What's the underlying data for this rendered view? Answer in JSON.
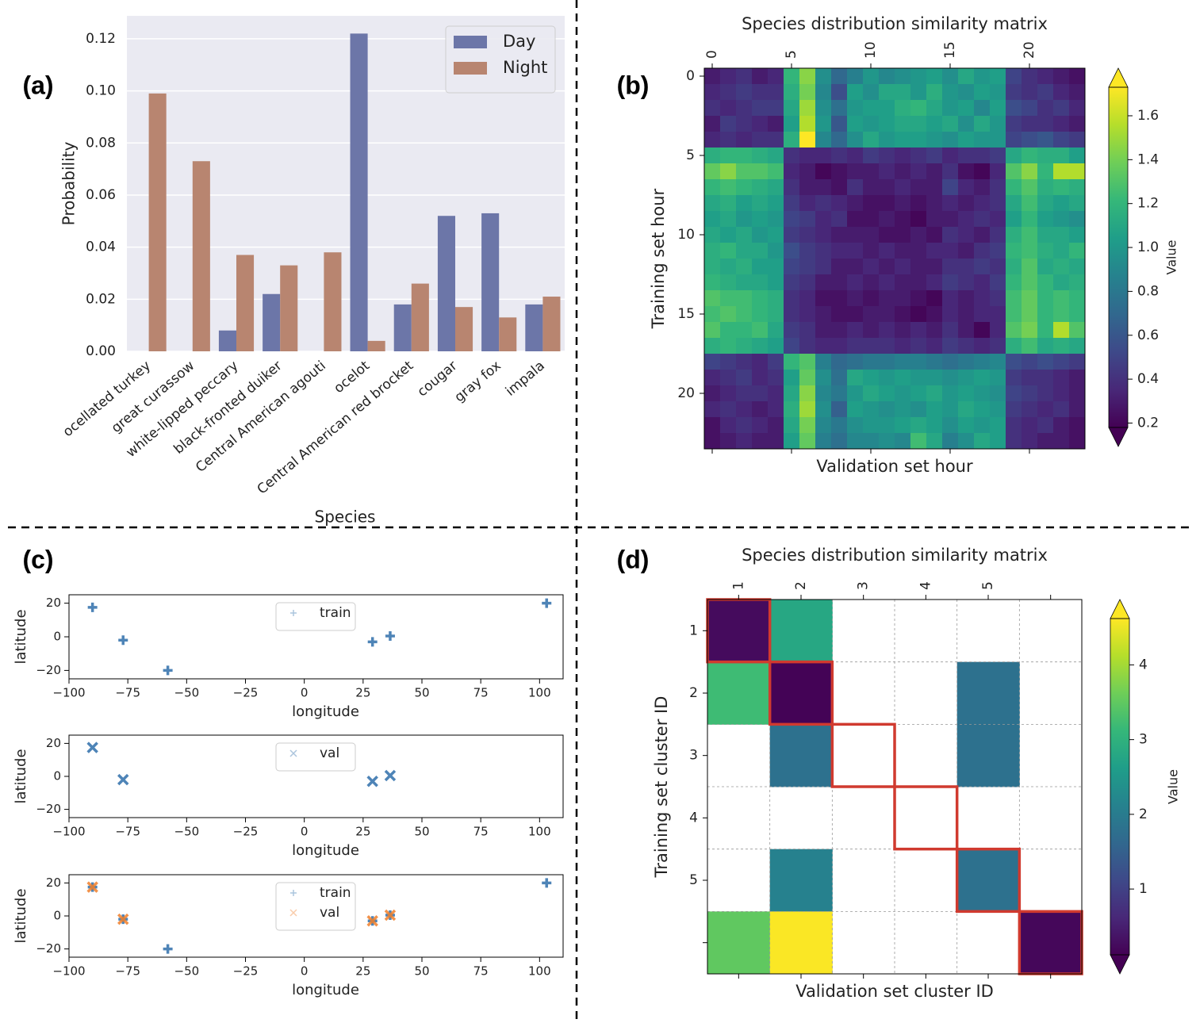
{
  "chart_data": [
    {
      "type": "bar",
      "panel_label": "(a)",
      "xlabel": "Species",
      "ylabel": "Probability",
      "categories": [
        "ocellated turkey",
        "great curassow",
        "white-lipped peccary",
        "black-fronted duiker",
        "Central American agouti",
        "ocelot",
        "Central American red brocket",
        "cougar",
        "gray fox",
        "impala"
      ],
      "series": [
        {
          "name": "Day",
          "color": "#6c76a8",
          "values": [
            0,
            0,
            0.008,
            0.022,
            0,
            0.122,
            0.018,
            0.052,
            0.053,
            0.018
          ]
        },
        {
          "name": "Night",
          "color": "#b88570",
          "values": [
            0.099,
            0.073,
            0.037,
            0.033,
            0.038,
            0.004,
            0.026,
            0.017,
            0.013,
            0.021
          ]
        }
      ],
      "ylim": [
        0,
        0.1288
      ],
      "yticks": [
        {
          "value": 0,
          "label": "0.00"
        },
        {
          "value": 0.02,
          "label": "0.02"
        },
        {
          "value": 0.04,
          "label": "0.04"
        },
        {
          "value": 0.06,
          "label": "0.06"
        },
        {
          "value": 0.08,
          "label": "0.08"
        },
        {
          "value": 0.1,
          "label": "0.10"
        },
        {
          "value": 0.12,
          "label": "0.12"
        }
      ],
      "grid": true,
      "legend": "upper right"
    },
    {
      "type": "heatmap",
      "panel_label": "(b)",
      "title": "Species distribution similarity matrix",
      "xlabel": "Validation set hour",
      "ylabel": "Training set hour",
      "xticks": [
        0,
        5,
        10,
        15,
        20
      ],
      "yticks": [
        0,
        5,
        10,
        15,
        20
      ],
      "z": [
        [
          0.3,
          0.35,
          0.4,
          0.3,
          0.35,
          1.2,
          1.45,
          0.95,
          0.7,
          0.85,
          1.0,
          0.9,
          0.95,
          1.0,
          1.05,
          0.95,
          1.1,
          1.0,
          1.05,
          0.5,
          0.4,
          0.35,
          0.3,
          0.25
        ],
        [
          0.35,
          0.4,
          0.45,
          0.4,
          0.4,
          1.15,
          1.4,
          0.9,
          0.55,
          1.05,
          0.95,
          1.1,
          1.1,
          1.0,
          1.15,
          1.0,
          0.95,
          1.05,
          1.0,
          0.45,
          0.4,
          0.45,
          0.35,
          0.3
        ],
        [
          0.4,
          0.35,
          0.4,
          0.45,
          0.45,
          1.1,
          1.5,
          0.95,
          0.75,
          1.0,
          1.05,
          1.05,
          1.15,
          1.2,
          1.1,
          1.0,
          1.05,
          0.9,
          1.05,
          0.55,
          0.5,
          0.4,
          0.45,
          0.35
        ],
        [
          0.3,
          0.45,
          0.4,
          0.35,
          0.3,
          1.05,
          1.55,
          1.0,
          0.6,
          1.05,
          1.0,
          1.05,
          1.1,
          1.1,
          1.05,
          1.1,
          0.95,
          1.1,
          1.0,
          0.45,
          0.4,
          0.4,
          0.35,
          0.3
        ],
        [
          0.35,
          0.4,
          0.35,
          0.4,
          0.4,
          1.15,
          1.75,
          0.9,
          0.7,
          0.95,
          1.1,
          1.0,
          1.05,
          1.05,
          1.0,
          0.95,
          1.05,
          1.0,
          1.0,
          0.5,
          0.55,
          0.6,
          0.5,
          0.45
        ],
        [
          1.15,
          1.2,
          1.2,
          1.15,
          1.1,
          0.4,
          0.35,
          0.35,
          0.4,
          0.35,
          0.45,
          0.4,
          0.35,
          0.4,
          0.45,
          0.35,
          0.4,
          0.4,
          0.45,
          1.1,
          1.2,
          1.15,
          1.15,
          1.05
        ],
        [
          1.35,
          1.45,
          1.3,
          1.3,
          1.25,
          0.35,
          0.3,
          0.2,
          0.25,
          0.3,
          0.3,
          0.35,
          0.3,
          0.35,
          0.3,
          0.4,
          0.25,
          0.2,
          0.35,
          1.3,
          1.45,
          1.2,
          1.55,
          1.55
        ],
        [
          1.2,
          1.25,
          1.2,
          1.15,
          1.1,
          0.4,
          0.3,
          0.3,
          0.25,
          0.4,
          0.3,
          0.3,
          0.35,
          0.3,
          0.3,
          0.5,
          0.35,
          0.3,
          0.4,
          1.2,
          1.3,
          1.15,
          1.2,
          1.15
        ],
        [
          1.1,
          1.15,
          1.05,
          1.1,
          1.05,
          0.45,
          0.35,
          0.4,
          0.35,
          0.3,
          0.25,
          0.25,
          0.3,
          0.25,
          0.3,
          0.35,
          0.3,
          0.35,
          0.4,
          1.1,
          1.25,
          1.1,
          1.05,
          1.1
        ],
        [
          1.05,
          1.1,
          1.0,
          1.05,
          1.0,
          0.5,
          0.45,
          0.35,
          0.4,
          0.25,
          0.25,
          0.3,
          0.25,
          0.2,
          0.3,
          0.3,
          0.35,
          0.4,
          0.35,
          1.05,
          1.2,
          1.05,
          1.0,
          0.95
        ],
        [
          1.1,
          1.05,
          1.1,
          1.0,
          1.05,
          0.45,
          0.4,
          0.35,
          0.3,
          0.3,
          0.3,
          0.25,
          0.25,
          0.3,
          0.25,
          0.4,
          0.35,
          0.3,
          0.4,
          1.15,
          1.25,
          1.1,
          1.1,
          1.05
        ],
        [
          1.15,
          1.2,
          1.1,
          1.1,
          1.0,
          0.55,
          0.45,
          0.4,
          0.35,
          0.35,
          0.3,
          0.35,
          0.3,
          0.3,
          0.35,
          0.35,
          0.3,
          0.4,
          0.45,
          1.2,
          1.25,
          1.15,
          1.1,
          1.2
        ],
        [
          1.15,
          1.1,
          1.15,
          1.05,
          1.05,
          0.5,
          0.45,
          0.4,
          0.3,
          0.3,
          0.35,
          0.3,
          0.35,
          0.3,
          0.3,
          0.4,
          0.4,
          0.45,
          0.4,
          1.15,
          1.3,
          1.1,
          1.15,
          1.1
        ],
        [
          1.2,
          1.15,
          1.1,
          1.1,
          1.05,
          0.45,
          0.4,
          0.3,
          0.3,
          0.35,
          0.3,
          0.35,
          0.3,
          0.3,
          0.35,
          0.45,
          0.4,
          0.35,
          0.45,
          1.2,
          1.3,
          1.2,
          1.1,
          1.15
        ],
        [
          1.3,
          1.25,
          1.25,
          1.2,
          1.15,
          0.4,
          0.35,
          0.25,
          0.25,
          0.3,
          0.25,
          0.3,
          0.3,
          0.25,
          0.2,
          0.35,
          0.3,
          0.35,
          0.4,
          1.25,
          1.35,
          1.2,
          1.25,
          1.2
        ],
        [
          1.25,
          1.3,
          1.25,
          1.2,
          1.15,
          0.4,
          0.35,
          0.3,
          0.25,
          0.25,
          0.3,
          0.3,
          0.25,
          0.2,
          0.25,
          0.35,
          0.3,
          0.35,
          0.35,
          1.25,
          1.35,
          1.2,
          1.25,
          1.2
        ],
        [
          1.3,
          1.2,
          1.2,
          1.25,
          1.1,
          0.45,
          0.4,
          0.3,
          0.3,
          0.35,
          0.3,
          0.35,
          0.3,
          0.35,
          0.3,
          0.4,
          0.3,
          0.2,
          0.35,
          1.3,
          1.4,
          1.2,
          1.55,
          1.3
        ],
        [
          1.15,
          1.2,
          1.15,
          1.1,
          1.05,
          0.5,
          0.4,
          0.35,
          0.35,
          0.4,
          0.4,
          0.4,
          0.35,
          0.4,
          0.35,
          0.45,
          0.4,
          0.35,
          0.4,
          1.15,
          1.25,
          1.1,
          1.15,
          1.1
        ],
        [
          0.5,
          0.45,
          0.4,
          0.35,
          0.45,
          1.2,
          1.3,
          0.85,
          0.7,
          0.75,
          0.8,
          0.8,
          0.85,
          0.85,
          0.8,
          0.75,
          0.8,
          0.85,
          0.9,
          0.55,
          0.5,
          0.55,
          0.5,
          0.45
        ],
        [
          0.35,
          0.4,
          0.45,
          0.35,
          0.4,
          1.05,
          1.35,
          0.95,
          0.75,
          1.1,
          1.05,
          1.0,
          1.05,
          1.0,
          1.0,
          0.95,
          1.0,
          1.05,
          1.0,
          0.45,
          0.4,
          0.4,
          0.35,
          0.3
        ],
        [
          0.3,
          0.35,
          0.4,
          0.4,
          0.35,
          1.1,
          1.45,
          0.9,
          0.8,
          1.0,
          1.1,
          1.05,
          1.0,
          1.05,
          1.1,
          1.0,
          1.05,
          1.0,
          0.95,
          0.5,
          0.45,
          0.4,
          0.35,
          0.3
        ],
        [
          0.35,
          0.4,
          0.35,
          0.3,
          0.35,
          1.15,
          1.5,
          0.95,
          0.65,
          1.05,
          1.0,
          0.95,
          1.0,
          0.95,
          1.05,
          1.0,
          1.1,
          1.05,
          1.0,
          0.45,
          0.4,
          0.35,
          0.4,
          0.3
        ],
        [
          0.25,
          0.35,
          0.4,
          0.35,
          0.3,
          1.1,
          1.4,
          0.9,
          0.8,
          0.95,
          1.0,
          1.0,
          1.05,
          1.1,
          1.05,
          0.95,
          1.05,
          1.0,
          1.05,
          0.4,
          0.35,
          0.4,
          0.3,
          0.25
        ],
        [
          0.25,
          0.3,
          0.35,
          0.3,
          0.3,
          1.05,
          1.35,
          0.85,
          0.75,
          0.9,
          0.9,
          0.95,
          0.9,
          1.25,
          1.1,
          0.85,
          0.95,
          1.1,
          1.05,
          0.4,
          0.35,
          0.3,
          0.3,
          0.25
        ]
      ],
      "colormap": "viridis",
      "clim": [
        0.18,
        1.73
      ],
      "colorbar_ticks": [
        0.2,
        0.4,
        0.6,
        0.8,
        {
          "value": 1,
          "label": "1.0"
        },
        1.2,
        1.4,
        1.6
      ],
      "colorbar_label": "Value"
    },
    {
      "type": "scatter",
      "panel_label": "(c)",
      "xlabel": "longitude",
      "ylabel": "latitude",
      "xlim": [
        -100,
        110
      ],
      "ylim": [
        -25,
        25
      ],
      "xticks": [
        {
          "value": -100,
          "label": "−100"
        },
        {
          "value": -75,
          "label": "−75"
        },
        {
          "value": -50,
          "label": "−50"
        },
        {
          "value": -25,
          "label": "−25"
        },
        0,
        25,
        50,
        75,
        100
      ],
      "yticks": [
        {
          "value": -20,
          "label": "−20"
        },
        0,
        20
      ],
      "series": [
        {
          "name": "train",
          "marker": "+",
          "color": "#2f6eaa",
          "x": [
            -90,
            -77,
            -58,
            29,
            36.5,
            103
          ],
          "y": [
            17.5,
            -2,
            -20,
            -3,
            0.5,
            20
          ]
        }
      ],
      "legend": "upper center"
    },
    {
      "type": "scatter",
      "xlabel": "longitude",
      "ylabel": "latitude",
      "xlim": [
        -100,
        110
      ],
      "ylim": [
        -25,
        25
      ],
      "xticks": [
        {
          "value": -100,
          "label": "−100"
        },
        {
          "value": -75,
          "label": "−75"
        },
        {
          "value": -50,
          "label": "−50"
        },
        {
          "value": -25,
          "label": "−25"
        },
        0,
        25,
        50,
        75,
        100
      ],
      "yticks": [
        {
          "value": -20,
          "label": "−20"
        },
        0,
        20
      ],
      "series": [
        {
          "name": "val",
          "marker": "x",
          "color": "#2f6eaa",
          "x": [
            -90,
            -77,
            29,
            36.5
          ],
          "y": [
            17.5,
            -2,
            -3,
            0.5
          ]
        }
      ],
      "legend": "upper center"
    },
    {
      "type": "scatter",
      "xlabel": "longitude",
      "ylabel": "latitude",
      "xlim": [
        -100,
        110
      ],
      "ylim": [
        -25,
        25
      ],
      "xticks": [
        {
          "value": -100,
          "label": "−100"
        },
        {
          "value": -75,
          "label": "−75"
        },
        {
          "value": -50,
          "label": "−50"
        },
        {
          "value": -25,
          "label": "−25"
        },
        0,
        25,
        50,
        75,
        100
      ],
      "yticks": [
        {
          "value": -20,
          "label": "−20"
        },
        0,
        20
      ],
      "series": [
        {
          "name": "train",
          "marker": "+",
          "color": "#2f6eaa",
          "x": [
            -90,
            -77,
            -58,
            29,
            36.5,
            103
          ],
          "y": [
            17.5,
            -2,
            -20,
            -3,
            0.5,
            20
          ]
        },
        {
          "name": "val",
          "marker": "x",
          "color": "#f07f2a",
          "x": [
            -90,
            -77,
            29,
            36.5
          ],
          "y": [
            17.5,
            -2,
            -3,
            0.5
          ]
        }
      ],
      "legend": "upper center"
    },
    {
      "type": "heatmap",
      "panel_label": "(d)",
      "title": "Species distribution similarity matrix",
      "xlabel": "Validation set cluster ID",
      "ylabel": "Training set cluster ID",
      "x_categories": [
        "1",
        "2",
        "3",
        "4",
        "5",
        null
      ],
      "y_categories": [
        "1",
        "2",
        "3",
        "4",
        "5",
        null
      ],
      "z": [
        [
          0.25,
          2.8,
          null,
          null,
          null,
          null
        ],
        [
          3.2,
          0.15,
          null,
          null,
          1.8,
          null
        ],
        [
          null,
          1.8,
          null,
          null,
          1.8,
          null
        ],
        [
          null,
          null,
          null,
          null,
          null,
          null
        ],
        [
          null,
          2.1,
          null,
          null,
          1.8,
          null
        ],
        [
          3.5,
          4.6,
          null,
          null,
          null,
          0.2
        ]
      ],
      "colormap": "viridis",
      "clim": [
        0.12,
        4.62
      ],
      "colorbar_ticks": [
        1,
        2,
        3,
        4
      ],
      "colorbar_label": "Value",
      "grid": true,
      "highlight_diagonal": true,
      "highlight_color": "#d03a2f"
    }
  ]
}
